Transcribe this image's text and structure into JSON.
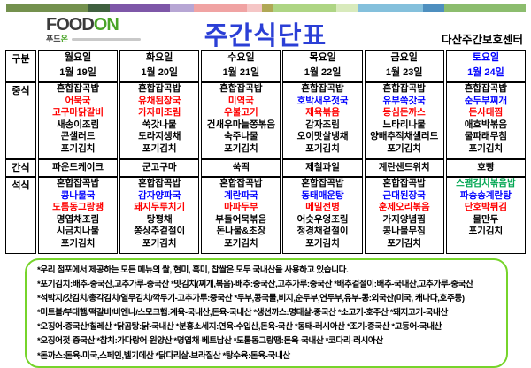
{
  "header": {
    "logo": {
      "food": "FOOD",
      "on": "ON",
      "sub_dark": "푸드",
      "sub_green": "온"
    },
    "title": "주간식단표",
    "title_color": "#2b3fd6",
    "center_name": "다산주간보호센터",
    "bar_segments": [
      {
        "color": "#74914e",
        "grow": 93
      },
      {
        "color": "#40603f",
        "grow": 25
      },
      {
        "color": "#7e57a8",
        "grow": 68
      },
      {
        "color": "#b7a6d4",
        "grow": 27
      },
      {
        "color": "#f0a3a3",
        "grow": 61
      },
      {
        "color": "#f5c6c6",
        "grow": 17
      },
      {
        "color": "#b0a855",
        "grow": 12
      },
      {
        "color": "#aed584",
        "grow": 73
      },
      {
        "color": "#d8eabc",
        "grow": 25
      },
      {
        "color": "#84c0dc",
        "grow": 73
      },
      {
        "color": "#4e8fbf",
        "grow": 24
      },
      {
        "color": "#8cbd6e",
        "grow": 93
      }
    ]
  },
  "table": {
    "corner_label": "구분",
    "row_labels": {
      "lunch": "중식",
      "snack": "간식",
      "dinner": "석식"
    },
    "days": [
      {
        "name": "월요일",
        "date": "1월 19일",
        "color": "#000000"
      },
      {
        "name": "화요일",
        "date": "1월 20일",
        "color": "#000000"
      },
      {
        "name": "수요일",
        "date": "1월 21일",
        "color": "#000000"
      },
      {
        "name": "목요일",
        "date": "1월 22일",
        "color": "#000000"
      },
      {
        "name": "금요일",
        "date": "1월 23일",
        "color": "#000000"
      },
      {
        "name": "토요일",
        "date": "1월 24일",
        "color": "#0000ff"
      }
    ],
    "lunch": [
      [
        {
          "t": "혼합잡곡밥",
          "c": "#000000"
        },
        {
          "t": "어묵국",
          "c": "#ff0000"
        },
        {
          "t": "고구마닭갈비",
          "c": "#ff0000"
        },
        {
          "t": "새송이조림",
          "c": "#000000"
        },
        {
          "t": "콘샐러드",
          "c": "#000000"
        },
        {
          "t": "포기김치",
          "c": "#000000"
        }
      ],
      [
        {
          "t": "혼합잡곡밥",
          "c": "#000000"
        },
        {
          "t": "유채된장국",
          "c": "#ff0000"
        },
        {
          "t": "가자미조림",
          "c": "#ff0000"
        },
        {
          "t": "쑥갓나물",
          "c": "#000000"
        },
        {
          "t": "도라지생채",
          "c": "#000000"
        },
        {
          "t": "포기김치",
          "c": "#000000"
        }
      ],
      [
        {
          "t": "혼합잡곡밥",
          "c": "#000000"
        },
        {
          "t": "미역국",
          "c": "#ff0000"
        },
        {
          "t": "우불고기",
          "c": "#ff0000"
        },
        {
          "t": "건새우마늘쫑볶음",
          "c": "#000000"
        },
        {
          "t": "숙주나물",
          "c": "#000000"
        },
        {
          "t": "포기김치",
          "c": "#000000"
        }
      ],
      [
        {
          "t": "혼합잡곡밥",
          "c": "#000000"
        },
        {
          "t": "호박새우젓국",
          "c": "#0000ff"
        },
        {
          "t": "제육볶음",
          "c": "#ff0000"
        },
        {
          "t": "감자조림",
          "c": "#000000"
        },
        {
          "t": "오이맛살냉채",
          "c": "#000000"
        },
        {
          "t": "포기김치",
          "c": "#000000"
        }
      ],
      [
        {
          "t": "혼합잡곡밥",
          "c": "#000000"
        },
        {
          "t": "유부쑥갓국",
          "c": "#0000ff"
        },
        {
          "t": "등심돈까스",
          "c": "#ff0000"
        },
        {
          "t": "느타리나물",
          "c": "#000000"
        },
        {
          "t": "양배추적채샐러드",
          "c": "#000000"
        },
        {
          "t": "포기김치",
          "c": "#000000"
        }
      ],
      [
        {
          "t": "혼합잡곡밥",
          "c": "#000000"
        },
        {
          "t": "순두부찌개",
          "c": "#0000ff"
        },
        {
          "t": "돈사태찜",
          "c": "#ff0000"
        },
        {
          "t": "애호박볶음",
          "c": "#000000"
        },
        {
          "t": "물파래무침",
          "c": "#000000"
        },
        {
          "t": "포기김치",
          "c": "#000000"
        }
      ]
    ],
    "snack": [
      "파운드케이크",
      "군고구마",
      "쑥떡",
      "제철과일",
      "계란샌드위치",
      "호빵"
    ],
    "dinner": [
      [
        {
          "t": "혼합잡곡밥",
          "c": "#000000"
        },
        {
          "t": "콩나물국",
          "c": "#0000ff"
        },
        {
          "t": "도톰동그랑땡",
          "c": "#ff0000"
        },
        {
          "t": "명엽채조림",
          "c": "#000000"
        },
        {
          "t": "시금치나물",
          "c": "#000000"
        },
        {
          "t": "포기김치",
          "c": "#000000"
        }
      ],
      [
        {
          "t": "혼합잡곡밥",
          "c": "#000000"
        },
        {
          "t": "감자양파국",
          "c": "#0000ff"
        },
        {
          "t": "돼지두루치기",
          "c": "#ff0000"
        },
        {
          "t": "탕평채",
          "c": "#000000"
        },
        {
          "t": "쫑상추겉절이",
          "c": "#000000"
        },
        {
          "t": "포기김치",
          "c": "#000000"
        }
      ],
      [
        {
          "t": "혼합잡곡밥",
          "c": "#000000"
        },
        {
          "t": "계란파국",
          "c": "#0000ff"
        },
        {
          "t": "마파두부",
          "c": "#ff0000"
        },
        {
          "t": "부들어묵볶음",
          "c": "#000000"
        },
        {
          "t": "돈나물&초장",
          "c": "#000000"
        },
        {
          "t": "포기김치",
          "c": "#000000"
        }
      ],
      [
        {
          "t": "혼합잡곡밥",
          "c": "#000000"
        },
        {
          "t": "동태매운탕",
          "c": "#0000ff"
        },
        {
          "t": "메밀전병",
          "c": "#ff0000"
        },
        {
          "t": "어슷우엉조림",
          "c": "#000000"
        },
        {
          "t": "청경채겉절이",
          "c": "#000000"
        },
        {
          "t": "포기김치",
          "c": "#000000"
        }
      ],
      [
        {
          "t": "혼합잡곡밥",
          "c": "#000000"
        },
        {
          "t": "근대된장국",
          "c": "#0000ff"
        },
        {
          "t": "훈제오리볶음",
          "c": "#ff0000"
        },
        {
          "t": "가지양념찜",
          "c": "#000000"
        },
        {
          "t": "콩나물무침",
          "c": "#000000"
        },
        {
          "t": "포기김치",
          "c": "#000000"
        }
      ],
      [
        {
          "t": "스팸김치볶음밥",
          "c": "#00a651"
        },
        {
          "t": "파송송계란탕",
          "c": "#0000ff"
        },
        {
          "t": "단호박튀김",
          "c": "#ff0000"
        },
        {
          "t": "물만두",
          "c": "#000000"
        },
        {
          "t": "포기김치",
          "c": "#000000"
        }
      ]
    ]
  },
  "footnotes": {
    "border_color": "#76d42b",
    "lines": [
      "*우리 점포에서 제공하는 모든 메뉴의 쌀, 현미, 흑미, 찹쌀은 모두 국내산을 사용하고 있습니다.",
      "*포기김치:배추-중국산,고추가루-중국산  *맛김치(찌개,볶음)-배추:중국산,고추가루:중국산  *배추겉절이:배추-국내산,고추가루-중국산",
      "*석박지/갓김치/총각김치/열무김치/깍두기-고추가루:중국산  *두부,콩국물,비지,순두부,연두부,유부-콩:외국산(미국, 캐나다,호주등)",
      "*미트볼/부대햄/떡갈비/비엔나/스모크햄:계육-국내산,돈육-국내산  *생선까스:명태살-중국산  *소고기-호주산  *돼지고기-국내산",
      "*오징어-중국산/칠레산  *닭곰탕:닭-국내산  *분홍소세지:연육-수입산,돈육-국산  *동태-러시아산  *조기-중국산  *고등어-국내산",
      "*오징어젓-중국산  *참치:가다랑어-원양산  *명엽채-베트남산  *도톰동그랑땡:돈육-국내산  *코다리-러시아산",
      "*돈까스:돈육-미국,스페인,벨기에산  *닭다리살-브라질산  *탕수육:돈육-국내산"
    ]
  }
}
